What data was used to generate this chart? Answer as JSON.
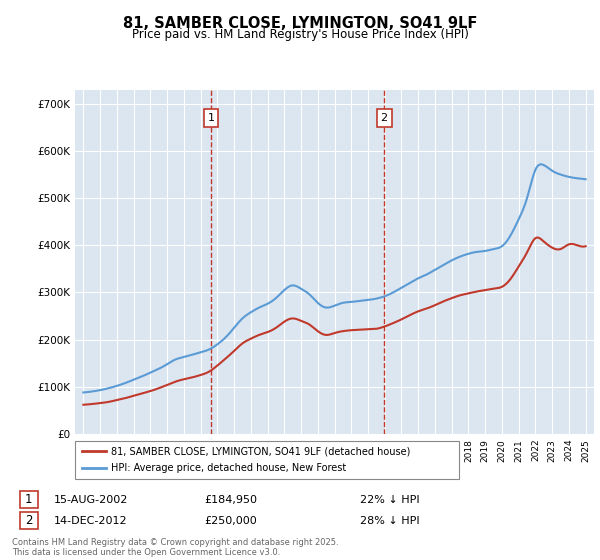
{
  "title": "81, SAMBER CLOSE, LYMINGTON, SO41 9LF",
  "subtitle": "Price paid vs. HM Land Registry's House Price Index (HPI)",
  "ytick_labels": [
    "£0",
    "£100K",
    "£200K",
    "£300K",
    "£400K",
    "£500K",
    "£600K",
    "£700K"
  ],
  "ytick_values": [
    0,
    100000,
    200000,
    300000,
    400000,
    500000,
    600000,
    700000
  ],
  "hpi_color": "#5b9bd5",
  "price_color": "#c0392b",
  "dashed_line_color": "#c0392b",
  "plot_bg_color": "#dce6f1",
  "legend_label_price": "81, SAMBER CLOSE, LYMINGTON, SO41 9LF (detached house)",
  "legend_label_hpi": "HPI: Average price, detached house, New Forest",
  "marker1_date": "15-AUG-2002",
  "marker1_price": 184950,
  "marker1_text": "22% ↓ HPI",
  "marker2_date": "14-DEC-2012",
  "marker2_price": 250000,
  "marker2_text": "28% ↓ HPI",
  "footnote": "Contains HM Land Registry data © Crown copyright and database right 2025.\nThis data is licensed under the Open Government Licence v3.0.",
  "marker1_num": "1",
  "marker2_num": "2",
  "marker1_x": 2002.62,
  "marker2_x": 2012.96,
  "hpi_years": [
    1995,
    1995.5,
    1996,
    1996.5,
    1997,
    1997.5,
    1998,
    1998.5,
    1999,
    1999.5,
    2000,
    2000.5,
    2001,
    2001.5,
    2002,
    2002.5,
    2003,
    2003.5,
    2004,
    2004.5,
    2005,
    2005.5,
    2006,
    2006.5,
    2007,
    2007.5,
    2008,
    2008.5,
    2009,
    2009.5,
    2010,
    2010.5,
    2011,
    2011.5,
    2012,
    2012.5,
    2013,
    2013.5,
    2014,
    2014.5,
    2015,
    2015.5,
    2016,
    2016.5,
    2017,
    2017.5,
    2018,
    2018.5,
    2019,
    2019.5,
    2020,
    2020.5,
    2021,
    2021.5,
    2022,
    2022.5,
    2023,
    2023.5,
    2024,
    2024.5,
    2025
  ],
  "hpi_values": [
    88000,
    90000,
    93000,
    97000,
    102000,
    108000,
    115000,
    122000,
    130000,
    138000,
    148000,
    158000,
    163000,
    168000,
    173000,
    179000,
    190000,
    205000,
    225000,
    245000,
    258000,
    268000,
    276000,
    288000,
    305000,
    315000,
    308000,
    296000,
    278000,
    268000,
    272000,
    278000,
    280000,
    282000,
    284000,
    287000,
    292000,
    300000,
    310000,
    320000,
    330000,
    338000,
    348000,
    358000,
    368000,
    376000,
    382000,
    386000,
    388000,
    392000,
    398000,
    420000,
    455000,
    500000,
    560000,
    570000,
    558000,
    550000,
    545000,
    542000,
    540000
  ],
  "price_years": [
    1995,
    1995.5,
    1996,
    1996.5,
    1997,
    1997.5,
    1998,
    1998.5,
    1999,
    1999.5,
    2000,
    2000.5,
    2001,
    2001.5,
    2002,
    2002.5,
    2003,
    2003.5,
    2004,
    2004.5,
    2005,
    2005.5,
    2006,
    2006.5,
    2007,
    2007.5,
    2008,
    2008.5,
    2009,
    2009.5,
    2010,
    2010.5,
    2011,
    2011.5,
    2012,
    2012.5,
    2013,
    2013.5,
    2014,
    2014.5,
    2015,
    2015.5,
    2016,
    2016.5,
    2017,
    2017.5,
    2018,
    2018.5,
    2019,
    2019.5,
    2020,
    2020.5,
    2021,
    2021.5,
    2022,
    2022.5,
    2023,
    2023.5,
    2024,
    2024.5,
    2025
  ],
  "price_values": [
    62000,
    63500,
    65500,
    68000,
    72000,
    76000,
    81000,
    86000,
    91000,
    97000,
    104000,
    111000,
    116000,
    120000,
    125000,
    132000,
    145000,
    160000,
    176000,
    192000,
    202000,
    210000,
    216000,
    225000,
    238000,
    245000,
    240000,
    232000,
    218000,
    210000,
    214000,
    218000,
    220000,
    221000,
    222000,
    223000,
    228000,
    235000,
    243000,
    252000,
    260000,
    266000,
    273000,
    281000,
    288000,
    294000,
    298000,
    302000,
    305000,
    308000,
    312000,
    328000,
    355000,
    385000,
    415000,
    408000,
    395000,
    392000,
    402000,
    400000,
    398000
  ]
}
